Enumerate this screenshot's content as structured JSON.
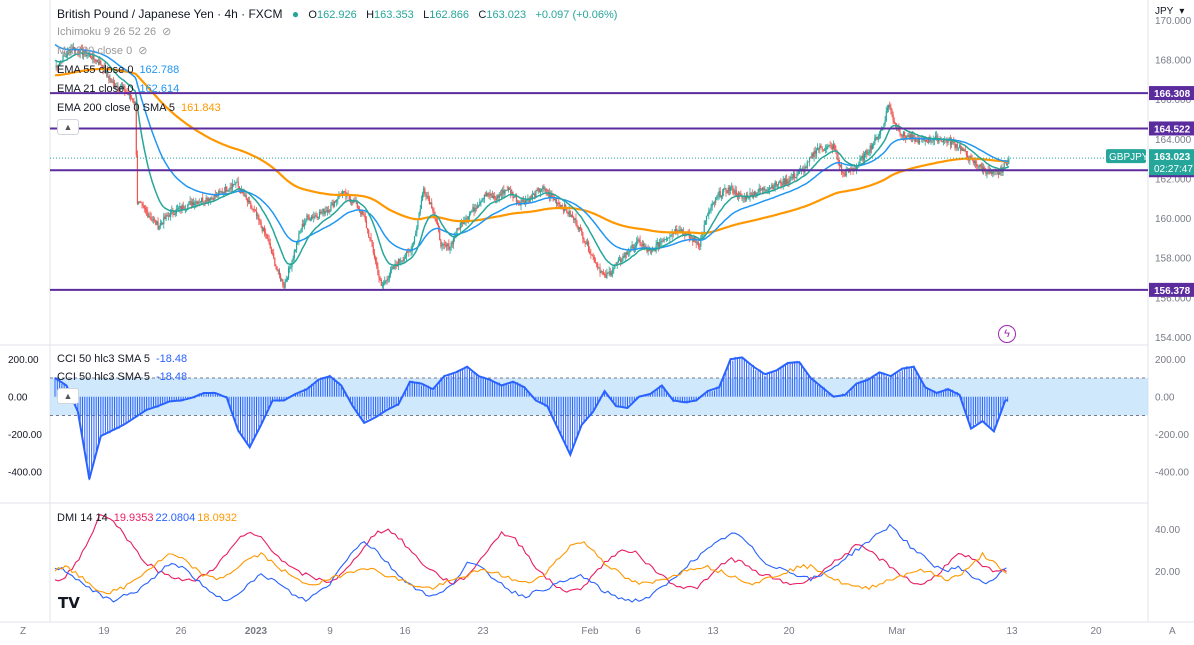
{
  "header": {
    "title": "British Pound / Japanese Yen · 4h · FXCM",
    "ohlc": {
      "o_label": "O",
      "o": "162.926",
      "h_label": "H",
      "h": "163.353",
      "l_label": "L",
      "l": "162.866",
      "c_label": "C",
      "c": "163.023",
      "change": "+0.097 (+0.06%)"
    },
    "currency": "JPY"
  },
  "legends": {
    "ichimoku": "Ichimoku 9 26 52 26",
    "ma200": "MA 200 close 0",
    "ema55": {
      "label": "EMA 55 close 0",
      "value": "162.788"
    },
    "ema21": {
      "label": "EMA 21 close 0",
      "value": "162.614"
    },
    "ema200": {
      "label": "EMA 200 close 0 SMA 5",
      "value": "161.843"
    },
    "cci1": {
      "label": "CCI 50 hlc3 SMA 5",
      "value": "-18.48"
    },
    "cci2": {
      "label": "CCI 50 hlc3 SMA 5",
      "value": "-18.48"
    },
    "dmi": {
      "label": "DMI 14 14",
      "v1": "19.9353",
      "v2": "22.0804",
      "v3": "18.0932"
    }
  },
  "colors": {
    "up": "#26a69a",
    "down": "#ef5350",
    "ema55": "#2196f3",
    "ema21": "#26a69a",
    "ema200": "#ff9800",
    "hline": "#5b2c9e",
    "cci": "#2962ff",
    "adx": "#ff9800",
    "diplus": "#2962ff",
    "diminus": "#e91e63"
  },
  "price_badges": {
    "symbol": "GBPJPY",
    "last": "163.023",
    "countdown": "02:27:47",
    "l1": "166.308",
    "l2": "164.522",
    "l3": "162.414",
    "l4": "156.378"
  },
  "chart_data": [
    {
      "type": "candlestick",
      "title": "British Pound / Japanese Yen · 4h · FXCM",
      "y_ticks": [
        "170.000",
        "168.000",
        "166.000",
        "164.000",
        "162.000",
        "160.000",
        "158.000",
        "156.000",
        "154.000"
      ],
      "ylim": [
        154,
        170.6
      ],
      "horizontal_lines": [
        166.308,
        164.522,
        162.414,
        156.378
      ],
      "x_ticks": [
        "19",
        "26",
        "2023",
        "9",
        "16",
        "23",
        "Feb",
        "6",
        "13",
        "20",
        "Mar",
        "13",
        "20"
      ],
      "close_path": [
        [
          0,
          167.6
        ],
        [
          15,
          168.6
        ],
        [
          30,
          168.2
        ],
        [
          40,
          167.8
        ],
        [
          50,
          166.8
        ],
        [
          60,
          166.5
        ],
        [
          70,
          165.8
        ],
        [
          72,
          160.8
        ],
        [
          80,
          160.3
        ],
        [
          90,
          159.6
        ],
        [
          100,
          160.2
        ],
        [
          120,
          160.8
        ],
        [
          140,
          161.1
        ],
        [
          150,
          161.5
        ],
        [
          158,
          161.8
        ],
        [
          166,
          161.0
        ],
        [
          175,
          160.2
        ],
        [
          185,
          159.0
        ],
        [
          195,
          157.2
        ],
        [
          200,
          156.6
        ],
        [
          205,
          157.5
        ],
        [
          215,
          159.5
        ],
        [
          220,
          160.0
        ],
        [
          230,
          160.2
        ],
        [
          240,
          160.5
        ],
        [
          250,
          161.3
        ],
        [
          262,
          160.8
        ],
        [
          270,
          160.0
        ],
        [
          278,
          158.3
        ],
        [
          285,
          156.5
        ],
        [
          290,
          157.0
        ],
        [
          300,
          157.8
        ],
        [
          310,
          158.3
        ],
        [
          315,
          159.3
        ],
        [
          322,
          161.5
        ],
        [
          330,
          160.5
        ],
        [
          338,
          158.5
        ],
        [
          345,
          158.6
        ],
        [
          355,
          159.8
        ],
        [
          365,
          160.4
        ],
        [
          375,
          161.2
        ],
        [
          385,
          161.0
        ],
        [
          395,
          161.5
        ],
        [
          405,
          160.8
        ],
        [
          415,
          161.0
        ],
        [
          425,
          161.5
        ],
        [
          435,
          161.0
        ],
        [
          445,
          160.5
        ],
        [
          455,
          159.8
        ],
        [
          462,
          159.0
        ],
        [
          470,
          158.0
        ],
        [
          480,
          157.0
        ],
        [
          490,
          157.6
        ],
        [
          500,
          158.3
        ],
        [
          510,
          158.8
        ],
        [
          520,
          158.2
        ],
        [
          530,
          158.9
        ],
        [
          545,
          159.5
        ],
        [
          555,
          159.0
        ],
        [
          563,
          158.7
        ],
        [
          570,
          160.2
        ],
        [
          580,
          161.2
        ],
        [
          590,
          161.5
        ],
        [
          600,
          161.0
        ],
        [
          612,
          161.3
        ],
        [
          625,
          161.6
        ],
        [
          640,
          161.9
        ],
        [
          655,
          162.5
        ],
        [
          665,
          163.5
        ],
        [
          680,
          163.6
        ],
        [
          688,
          162.2
        ],
        [
          700,
          162.6
        ],
        [
          715,
          163.8
        ],
        [
          723,
          164.6
        ],
        [
          728,
          165.8
        ],
        [
          732,
          165.0
        ],
        [
          740,
          164.2
        ],
        [
          755,
          163.9
        ],
        [
          770,
          164.0
        ],
        [
          780,
          163.9
        ],
        [
          790,
          163.6
        ],
        [
          800,
          162.9
        ],
        [
          810,
          162.5
        ],
        [
          818,
          162.2
        ],
        [
          825,
          162.3
        ],
        [
          833,
          163.0
        ]
      ]
    },
    {
      "type": "area",
      "title": "CCI 50 hlc3 SMA 5",
      "y_ticks": [
        "200.00",
        "0.00",
        "-200.00",
        "-400.00"
      ],
      "ylim": [
        -530,
        260
      ],
      "band": [
        -100,
        100
      ],
      "x": [
        0,
        10,
        20,
        30,
        40,
        50,
        60,
        70,
        80,
        90,
        100,
        110,
        120,
        130,
        140,
        150,
        160,
        170,
        180,
        190,
        200,
        210,
        220,
        230,
        240,
        250,
        260,
        270,
        280,
        290,
        300,
        310,
        320,
        330,
        340,
        350,
        360,
        370,
        380,
        390,
        400,
        410,
        420,
        430,
        440,
        450,
        460,
        470,
        480,
        490,
        500,
        510,
        520,
        530,
        540,
        550,
        560,
        570,
        580,
        590,
        600,
        610,
        620,
        630,
        640,
        650,
        660,
        670,
        680,
        690,
        700,
        710,
        720,
        730,
        740,
        750,
        760,
        770,
        780,
        790,
        800,
        810,
        820,
        830
      ],
      "values": [
        100,
        60,
        -80,
        -440,
        -210,
        -180,
        -150,
        -110,
        -70,
        -50,
        -25,
        -20,
        -5,
        20,
        20,
        -5,
        -180,
        -270,
        -150,
        -20,
        -20,
        15,
        40,
        90,
        110,
        60,
        -50,
        -140,
        -110,
        -70,
        -40,
        80,
        70,
        40,
        110,
        130,
        160,
        110,
        90,
        60,
        80,
        50,
        -20,
        -50,
        -180,
        -310,
        -150,
        -80,
        30,
        -50,
        -60,
        0,
        15,
        60,
        -20,
        -30,
        -20,
        30,
        50,
        200,
        210,
        160,
        120,
        140,
        180,
        185,
        100,
        50,
        0,
        10,
        70,
        90,
        130,
        110,
        150,
        160,
        50,
        20,
        40,
        10,
        -170,
        -130,
        -185,
        -18.48
      ]
    },
    {
      "type": "line",
      "title": "DMI 14 14",
      "y_ticks": [
        "40.00",
        "20.00"
      ],
      "ylim": [
        0,
        50
      ],
      "x": [
        0,
        10,
        20,
        30,
        40,
        50,
        60,
        70,
        80,
        90,
        100,
        110,
        120,
        130,
        140,
        150,
        160,
        170,
        180,
        190,
        200,
        210,
        220,
        230,
        240,
        250,
        260,
        270,
        280,
        290,
        300,
        310,
        320,
        330,
        340,
        350,
        360,
        370,
        380,
        390,
        400,
        410,
        420,
        430,
        440,
        450,
        460,
        470,
        480,
        490,
        500,
        510,
        520,
        530,
        540,
        550,
        560,
        570,
        580,
        590,
        600,
        610,
        620,
        630,
        640,
        650,
        660,
        670,
        680,
        690,
        700,
        710,
        720,
        730,
        740,
        750,
        760,
        770,
        780,
        790,
        800,
        810,
        820,
        830
      ],
      "series": [
        {
          "name": "19.9353",
          "values": [
            15,
            18,
            25,
            35,
            48,
            44,
            38,
            30,
            24,
            20,
            18,
            16,
            15,
            18,
            22,
            28,
            35,
            38,
            36,
            30,
            24,
            20,
            18,
            16,
            15,
            18,
            24,
            32,
            38,
            40,
            36,
            30,
            24,
            20,
            16,
            14,
            18,
            24,
            32,
            38,
            36,
            30,
            22,
            16,
            12,
            10,
            12,
            18,
            24,
            28,
            30,
            28,
            22,
            18,
            14,
            12,
            12,
            16,
            22,
            26,
            24,
            20,
            18,
            16,
            14,
            14,
            16,
            20,
            24,
            28,
            32,
            30,
            26,
            22,
            18,
            14,
            14,
            18,
            24,
            28,
            26,
            22,
            20,
            19.9
          ]
        },
        {
          "name": "22.0804",
          "values": [
            22,
            20,
            16,
            12,
            8,
            6,
            8,
            10,
            14,
            18,
            24,
            22,
            18,
            12,
            8,
            6,
            10,
            14,
            18,
            16,
            12,
            8,
            6,
            10,
            14,
            22,
            30,
            34,
            30,
            24,
            18,
            14,
            10,
            8,
            10,
            16,
            24,
            22,
            18,
            14,
            10,
            8,
            10,
            12,
            14,
            16,
            18,
            14,
            10,
            8,
            6,
            6,
            8,
            12,
            16,
            22,
            26,
            30,
            34,
            38,
            36,
            30,
            24,
            22,
            20,
            18,
            16,
            18,
            22,
            26,
            30,
            34,
            38,
            42,
            36,
            30,
            26,
            22,
            20,
            22,
            18,
            14,
            16,
            22.1
          ]
        },
        {
          "name": "18.0932",
          "values": [
            20,
            22,
            18,
            14,
            10,
            10,
            12,
            16,
            20,
            24,
            28,
            26,
            22,
            18,
            16,
            18,
            22,
            26,
            28,
            24,
            20,
            16,
            14,
            14,
            16,
            18,
            20,
            22,
            20,
            18,
            16,
            14,
            12,
            12,
            14,
            16,
            18,
            20,
            20,
            18,
            16,
            14,
            16,
            20,
            26,
            32,
            34,
            30,
            24,
            20,
            16,
            14,
            14,
            16,
            18,
            20,
            22,
            22,
            20,
            18,
            16,
            14,
            16,
            18,
            20,
            22,
            22,
            20,
            16,
            14,
            12,
            12,
            14,
            16,
            18,
            20,
            20,
            18,
            16,
            18,
            22,
            28,
            24,
            18.1
          ]
        }
      ]
    }
  ]
}
